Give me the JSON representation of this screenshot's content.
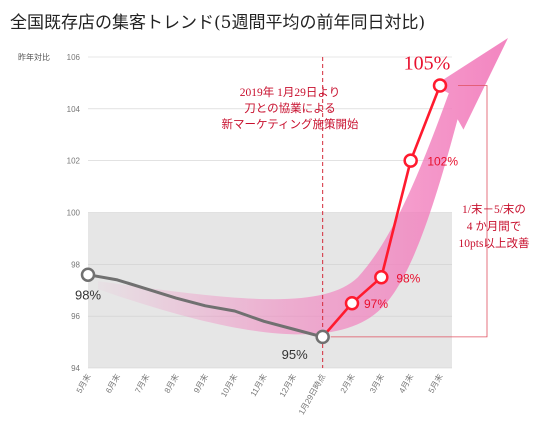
{
  "title": "全国既存店の集客トレンド(5週間平均の前年同日対比)",
  "chart_data": {
    "type": "line",
    "ylabel": "昨年対比",
    "ylim": [
      94,
      106
    ],
    "yticks": [
      "94",
      "96",
      "98",
      "100",
      "102",
      "104",
      "106"
    ],
    "categories": [
      "5月末",
      "6月末",
      "7月末",
      "8月末",
      "9月末",
      "10月末",
      "11月末",
      "12月末",
      "1月29日時点",
      "2月末",
      "3月末",
      "4月末",
      "5月末"
    ],
    "series": [
      {
        "values": [
          97.6,
          97.4,
          97.05,
          96.7,
          96.4,
          96.2,
          95.8,
          95.5,
          95.2,
          null,
          null,
          null,
          null
        ],
        "color": "#707070"
      },
      {
        "values": [
          null,
          null,
          null,
          null,
          null,
          null,
          null,
          null,
          95.2,
          96.5,
          97.5,
          102.0,
          104.9
        ],
        "color": "#ff1a2e"
      }
    ],
    "point_labels": [
      {
        "text": "98%",
        "color": "gray"
      },
      {
        "text": "95%",
        "color": "gray"
      },
      {
        "text": "97%",
        "color": "red"
      },
      {
        "text": "98%",
        "color": "red"
      },
      {
        "text": "102%",
        "color": "red"
      },
      {
        "text": "105%",
        "color": "red"
      }
    ],
    "event_annotation": [
      "2019年 1月29日より",
      "刀との協業による",
      "新マーケティング施策開始"
    ],
    "improvement_annotation": [
      "1/末－5/末の",
      "4 か月間で",
      "10pts以上改善"
    ],
    "colors": {
      "trend_arrow": "#f27fbd",
      "below100_band": "#e6e6e6",
      "event_line": "#d42a3a"
    }
  }
}
